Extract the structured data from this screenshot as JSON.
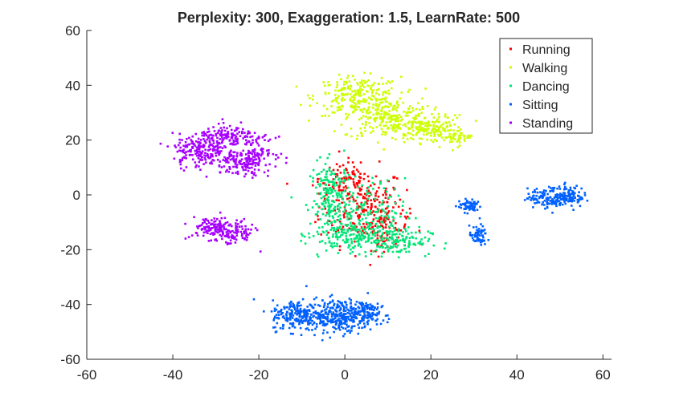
{
  "chart_data": {
    "type": "scatter",
    "title": "Perplexity: 300, Exaggeration: 1.5, LearnRate: 500",
    "xlabel": "",
    "ylabel": "",
    "xlim": [
      -60,
      62
    ],
    "ylim": [
      -60,
      60
    ],
    "xticks": [
      -60,
      -40,
      -20,
      0,
      20,
      40,
      60
    ],
    "yticks": [
      -60,
      -40,
      -20,
      0,
      20,
      40,
      60
    ],
    "xtick_labels": [
      "-60",
      "-40",
      "-20",
      "0",
      "20",
      "40",
      "60"
    ],
    "ytick_labels": [
      "-60",
      "-40",
      "-20",
      "0",
      "20",
      "40",
      "60"
    ],
    "grid": false,
    "legend_position": "top-right",
    "series": [
      {
        "name": "Running",
        "color": "#ff0000",
        "clusters": [
          {
            "cx": 4,
            "cy": -4,
            "sx": 5,
            "sy": 7,
            "n": 220
          },
          {
            "cx": 9,
            "cy": -12,
            "sx": 3,
            "sy": 4,
            "n": 90
          },
          {
            "cx": 0,
            "cy": 6,
            "sx": 3,
            "sy": 3,
            "n": 60
          }
        ]
      },
      {
        "name": "Walking",
        "color": "#ccff00",
        "clusters": [
          {
            "cx": 3,
            "cy": 36,
            "sx": 5,
            "sy": 3.5,
            "n": 230
          },
          {
            "cx": 10,
            "cy": 28,
            "sx": 5,
            "sy": 4,
            "n": 230
          },
          {
            "cx": 20,
            "cy": 24,
            "sx": 4,
            "sy": 2.5,
            "n": 150
          },
          {
            "cx": 26,
            "cy": 21,
            "sx": 2,
            "sy": 1.5,
            "n": 40
          }
        ]
      },
      {
        "name": "Dancing",
        "color": "#00e676",
        "clusters": [
          {
            "cx": -3,
            "cy": -2,
            "sx": 2.5,
            "sy": 7,
            "n": 220
          },
          {
            "cx": 3,
            "cy": -15,
            "sx": 5,
            "sy": 3,
            "n": 170
          },
          {
            "cx": 12,
            "cy": -17,
            "sx": 4,
            "sy": 2.5,
            "n": 120
          },
          {
            "cx": 6,
            "cy": -6,
            "sx": 4,
            "sy": 6,
            "n": 110
          }
        ]
      },
      {
        "name": "Sitting",
        "color": "#0060ff",
        "clusters": [
          {
            "cx": -11,
            "cy": -44,
            "sx": 3,
            "sy": 2.8,
            "n": 200
          },
          {
            "cx": -1,
            "cy": -44,
            "sx": 4,
            "sy": 3,
            "n": 320
          },
          {
            "cx": 5,
            "cy": -42,
            "sx": 1.5,
            "sy": 2,
            "n": 60
          },
          {
            "cx": 29,
            "cy": -4,
            "sx": 1.4,
            "sy": 1.2,
            "n": 60
          },
          {
            "cx": 31,
            "cy": -15,
            "sx": 1,
            "sy": 1.8,
            "n": 60
          },
          {
            "cx": 48,
            "cy": -1,
            "sx": 2.8,
            "sy": 1.8,
            "n": 140
          },
          {
            "cx": 52,
            "cy": 0,
            "sx": 1.8,
            "sy": 1.8,
            "n": 80
          }
        ]
      },
      {
        "name": "Standing",
        "color": "#a600ff",
        "clusters": [
          {
            "cx": -34,
            "cy": 16,
            "sx": 3,
            "sy": 3,
            "n": 170
          },
          {
            "cx": -27,
            "cy": 21,
            "sx": 3.5,
            "sy": 2,
            "n": 150
          },
          {
            "cx": -24,
            "cy": 12,
            "sx": 3.5,
            "sy": 2.5,
            "n": 150
          },
          {
            "cx": -20,
            "cy": 16,
            "sx": 2,
            "sy": 2.5,
            "n": 60
          },
          {
            "cx": -31,
            "cy": -12,
            "sx": 2.5,
            "sy": 2,
            "n": 100
          },
          {
            "cx": -26,
            "cy": -14,
            "sx": 2.5,
            "sy": 2.2,
            "n": 100
          }
        ]
      }
    ]
  }
}
